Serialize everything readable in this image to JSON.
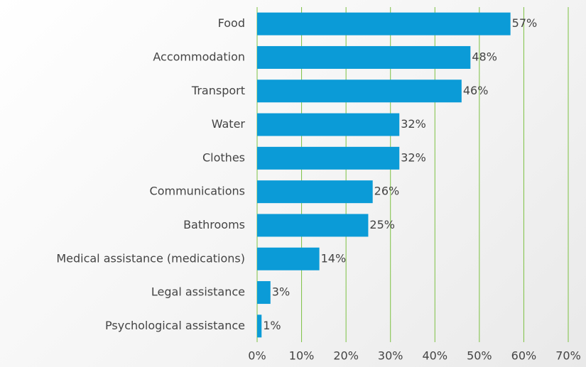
{
  "chart_data": {
    "type": "bar",
    "orientation": "horizontal",
    "categories": [
      "Food",
      "Accommodation",
      "Transport",
      "Water",
      "Clothes",
      "Communications",
      "Bathrooms",
      "Medical assistance (medications)",
      "Legal assistance",
      "Psychological assistance"
    ],
    "values": [
      57,
      48,
      46,
      32,
      32,
      26,
      25,
      14,
      3,
      1
    ],
    "value_labels": [
      "57%",
      "48%",
      "46%",
      "32%",
      "32%",
      "26%",
      "25%",
      "14%",
      "3%",
      "1%"
    ],
    "color": "#0b9bd7",
    "xlim": [
      0,
      70
    ],
    "xticks": [
      {
        "value": 0,
        "label": "0%"
      },
      {
        "value": 10,
        "label": "10%"
      },
      {
        "value": 20,
        "label": "20%"
      },
      {
        "value": 30,
        "label": "30%"
      },
      {
        "value": 40,
        "label": "40%"
      },
      {
        "value": 50,
        "label": "50%"
      },
      {
        "value": 60,
        "label": "60%"
      },
      {
        "value": 70,
        "label": "70%"
      }
    ],
    "grid": true,
    "grid_color": "#7cc142"
  }
}
